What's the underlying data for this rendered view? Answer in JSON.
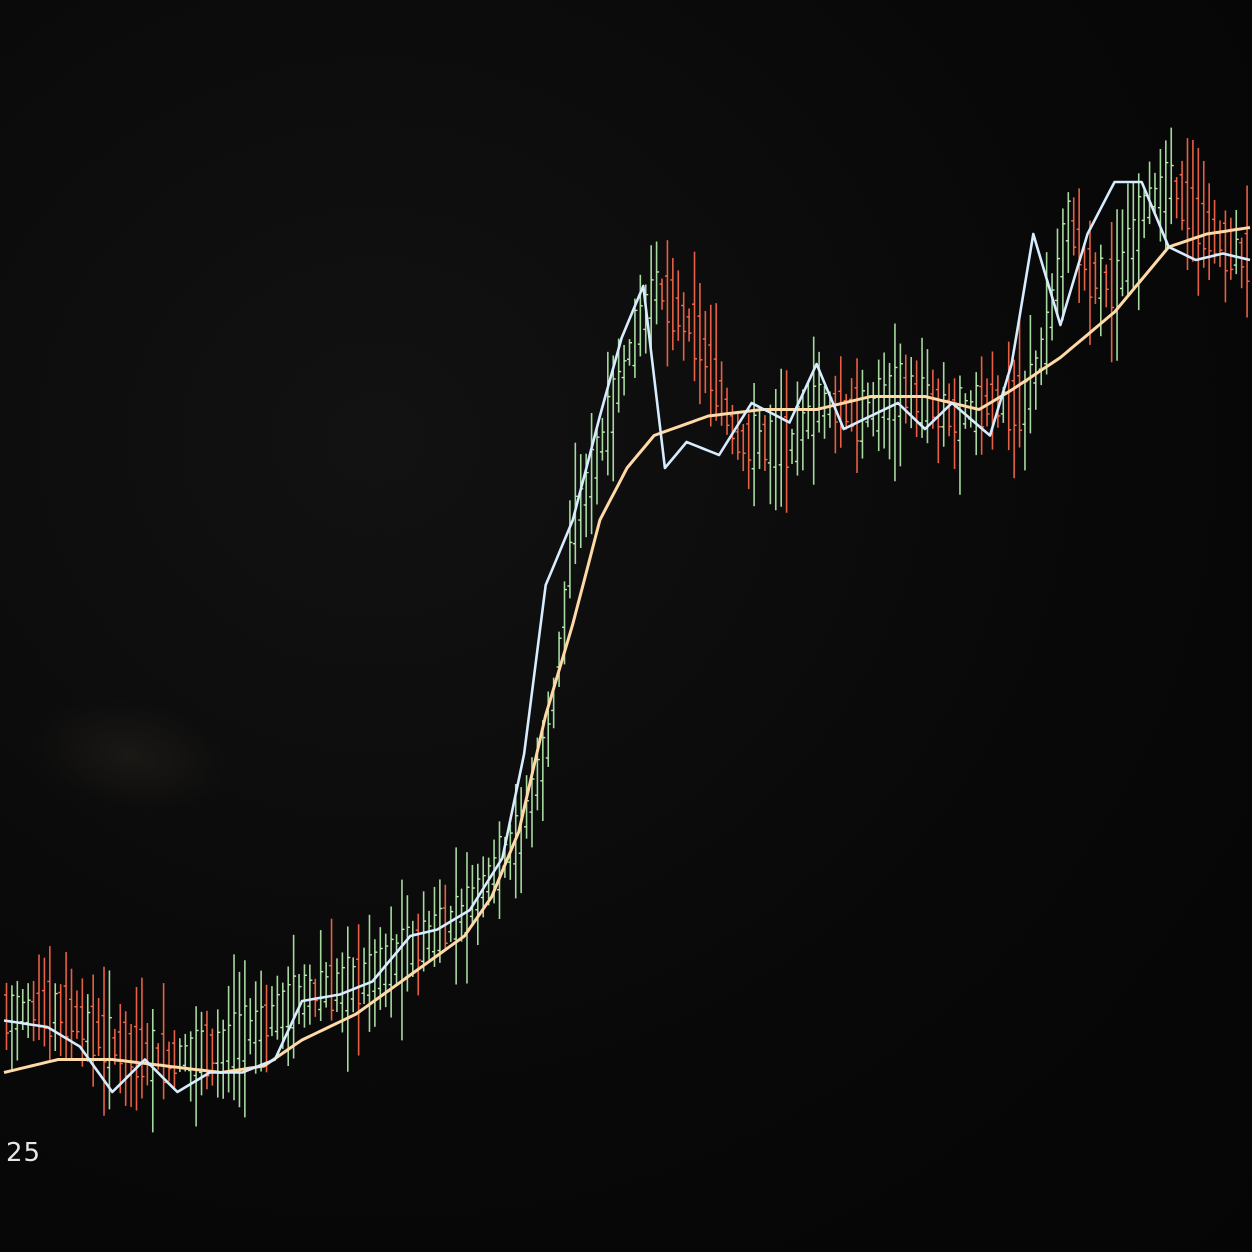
{
  "chart_data": {
    "type": "candlestick",
    "title": "",
    "xlabel": "",
    "ylabel": "",
    "grid": false,
    "legend": "none",
    "x_tick_labels": [
      "25"
    ],
    "ylim": [
      0,
      100
    ],
    "x_count": 230,
    "colors": {
      "up": "#b8f0b0",
      "down": "#ff6a4a",
      "fast_ma": "#d8ecff",
      "slow_ma": "#ffd9a6",
      "background": "#070707"
    },
    "anchors": [
      [
        0,
        22
      ],
      [
        10,
        22.5
      ],
      [
        20,
        19.5
      ],
      [
        30,
        18.5
      ],
      [
        40,
        19.5
      ],
      [
        48,
        21.5
      ],
      [
        55,
        23.5
      ],
      [
        65,
        24.5
      ],
      [
        75,
        27
      ],
      [
        85,
        30
      ],
      [
        95,
        36
      ],
      [
        100,
        43
      ],
      [
        105,
        60
      ],
      [
        110,
        66
      ],
      [
        115,
        73
      ],
      [
        120,
        78
      ],
      [
        128,
        74
      ],
      [
        135,
        66
      ],
      [
        145,
        66
      ],
      [
        150,
        69
      ],
      [
        158,
        68
      ],
      [
        165,
        70
      ],
      [
        175,
        68
      ],
      [
        182,
        69
      ],
      [
        188,
        69
      ],
      [
        192,
        74
      ],
      [
        196,
        83
      ],
      [
        200,
        79
      ],
      [
        205,
        78
      ],
      [
        210,
        84
      ],
      [
        215,
        86
      ],
      [
        220,
        83
      ],
      [
        225,
        81
      ],
      [
        230,
        80
      ]
    ],
    "fast_ma_anchors": [
      [
        0,
        21.5
      ],
      [
        8,
        21
      ],
      [
        14,
        19.5
      ],
      [
        20,
        16
      ],
      [
        26,
        18.5
      ],
      [
        32,
        16
      ],
      [
        38,
        17.5
      ],
      [
        44,
        17.5
      ],
      [
        50,
        18.5
      ],
      [
        55,
        23
      ],
      [
        62,
        23.5
      ],
      [
        68,
        24.5
      ],
      [
        75,
        28
      ],
      [
        80,
        28.5
      ],
      [
        86,
        30
      ],
      [
        92,
        34
      ],
      [
        96,
        42
      ],
      [
        100,
        55
      ],
      [
        105,
        60
      ],
      [
        110,
        68
      ],
      [
        114,
        74
      ],
      [
        118,
        78
      ],
      [
        122,
        64
      ],
      [
        126,
        66
      ],
      [
        132,
        65
      ],
      [
        138,
        69
      ],
      [
        145,
        67.5
      ],
      [
        150,
        72
      ],
      [
        155,
        67
      ],
      [
        160,
        68
      ],
      [
        165,
        69
      ],
      [
        170,
        67
      ],
      [
        175,
        69
      ],
      [
        182,
        66.5
      ],
      [
        186,
        72
      ],
      [
        190,
        82
      ],
      [
        195,
        75
      ],
      [
        200,
        82
      ],
      [
        205,
        86
      ],
      [
        210,
        86
      ],
      [
        215,
        81
      ],
      [
        220,
        80
      ],
      [
        225,
        80.5
      ],
      [
        230,
        80
      ]
    ],
    "slow_ma_anchors": [
      [
        0,
        17.5
      ],
      [
        10,
        18.5
      ],
      [
        20,
        18.5
      ],
      [
        30,
        18
      ],
      [
        40,
        17.5
      ],
      [
        48,
        18
      ],
      [
        55,
        20
      ],
      [
        65,
        22
      ],
      [
        75,
        25
      ],
      [
        85,
        28
      ],
      [
        90,
        31
      ],
      [
        95,
        36
      ],
      [
        100,
        45
      ],
      [
        105,
        52
      ],
      [
        110,
        60
      ],
      [
        115,
        64
      ],
      [
        120,
        66.5
      ],
      [
        130,
        68
      ],
      [
        140,
        68.5
      ],
      [
        150,
        68.5
      ],
      [
        160,
        69.5
      ],
      [
        170,
        69.5
      ],
      [
        180,
        68.5
      ],
      [
        186,
        70
      ],
      [
        195,
        72.5
      ],
      [
        205,
        76
      ],
      [
        215,
        81
      ],
      [
        222,
        82
      ],
      [
        230,
        82.5
      ]
    ]
  }
}
